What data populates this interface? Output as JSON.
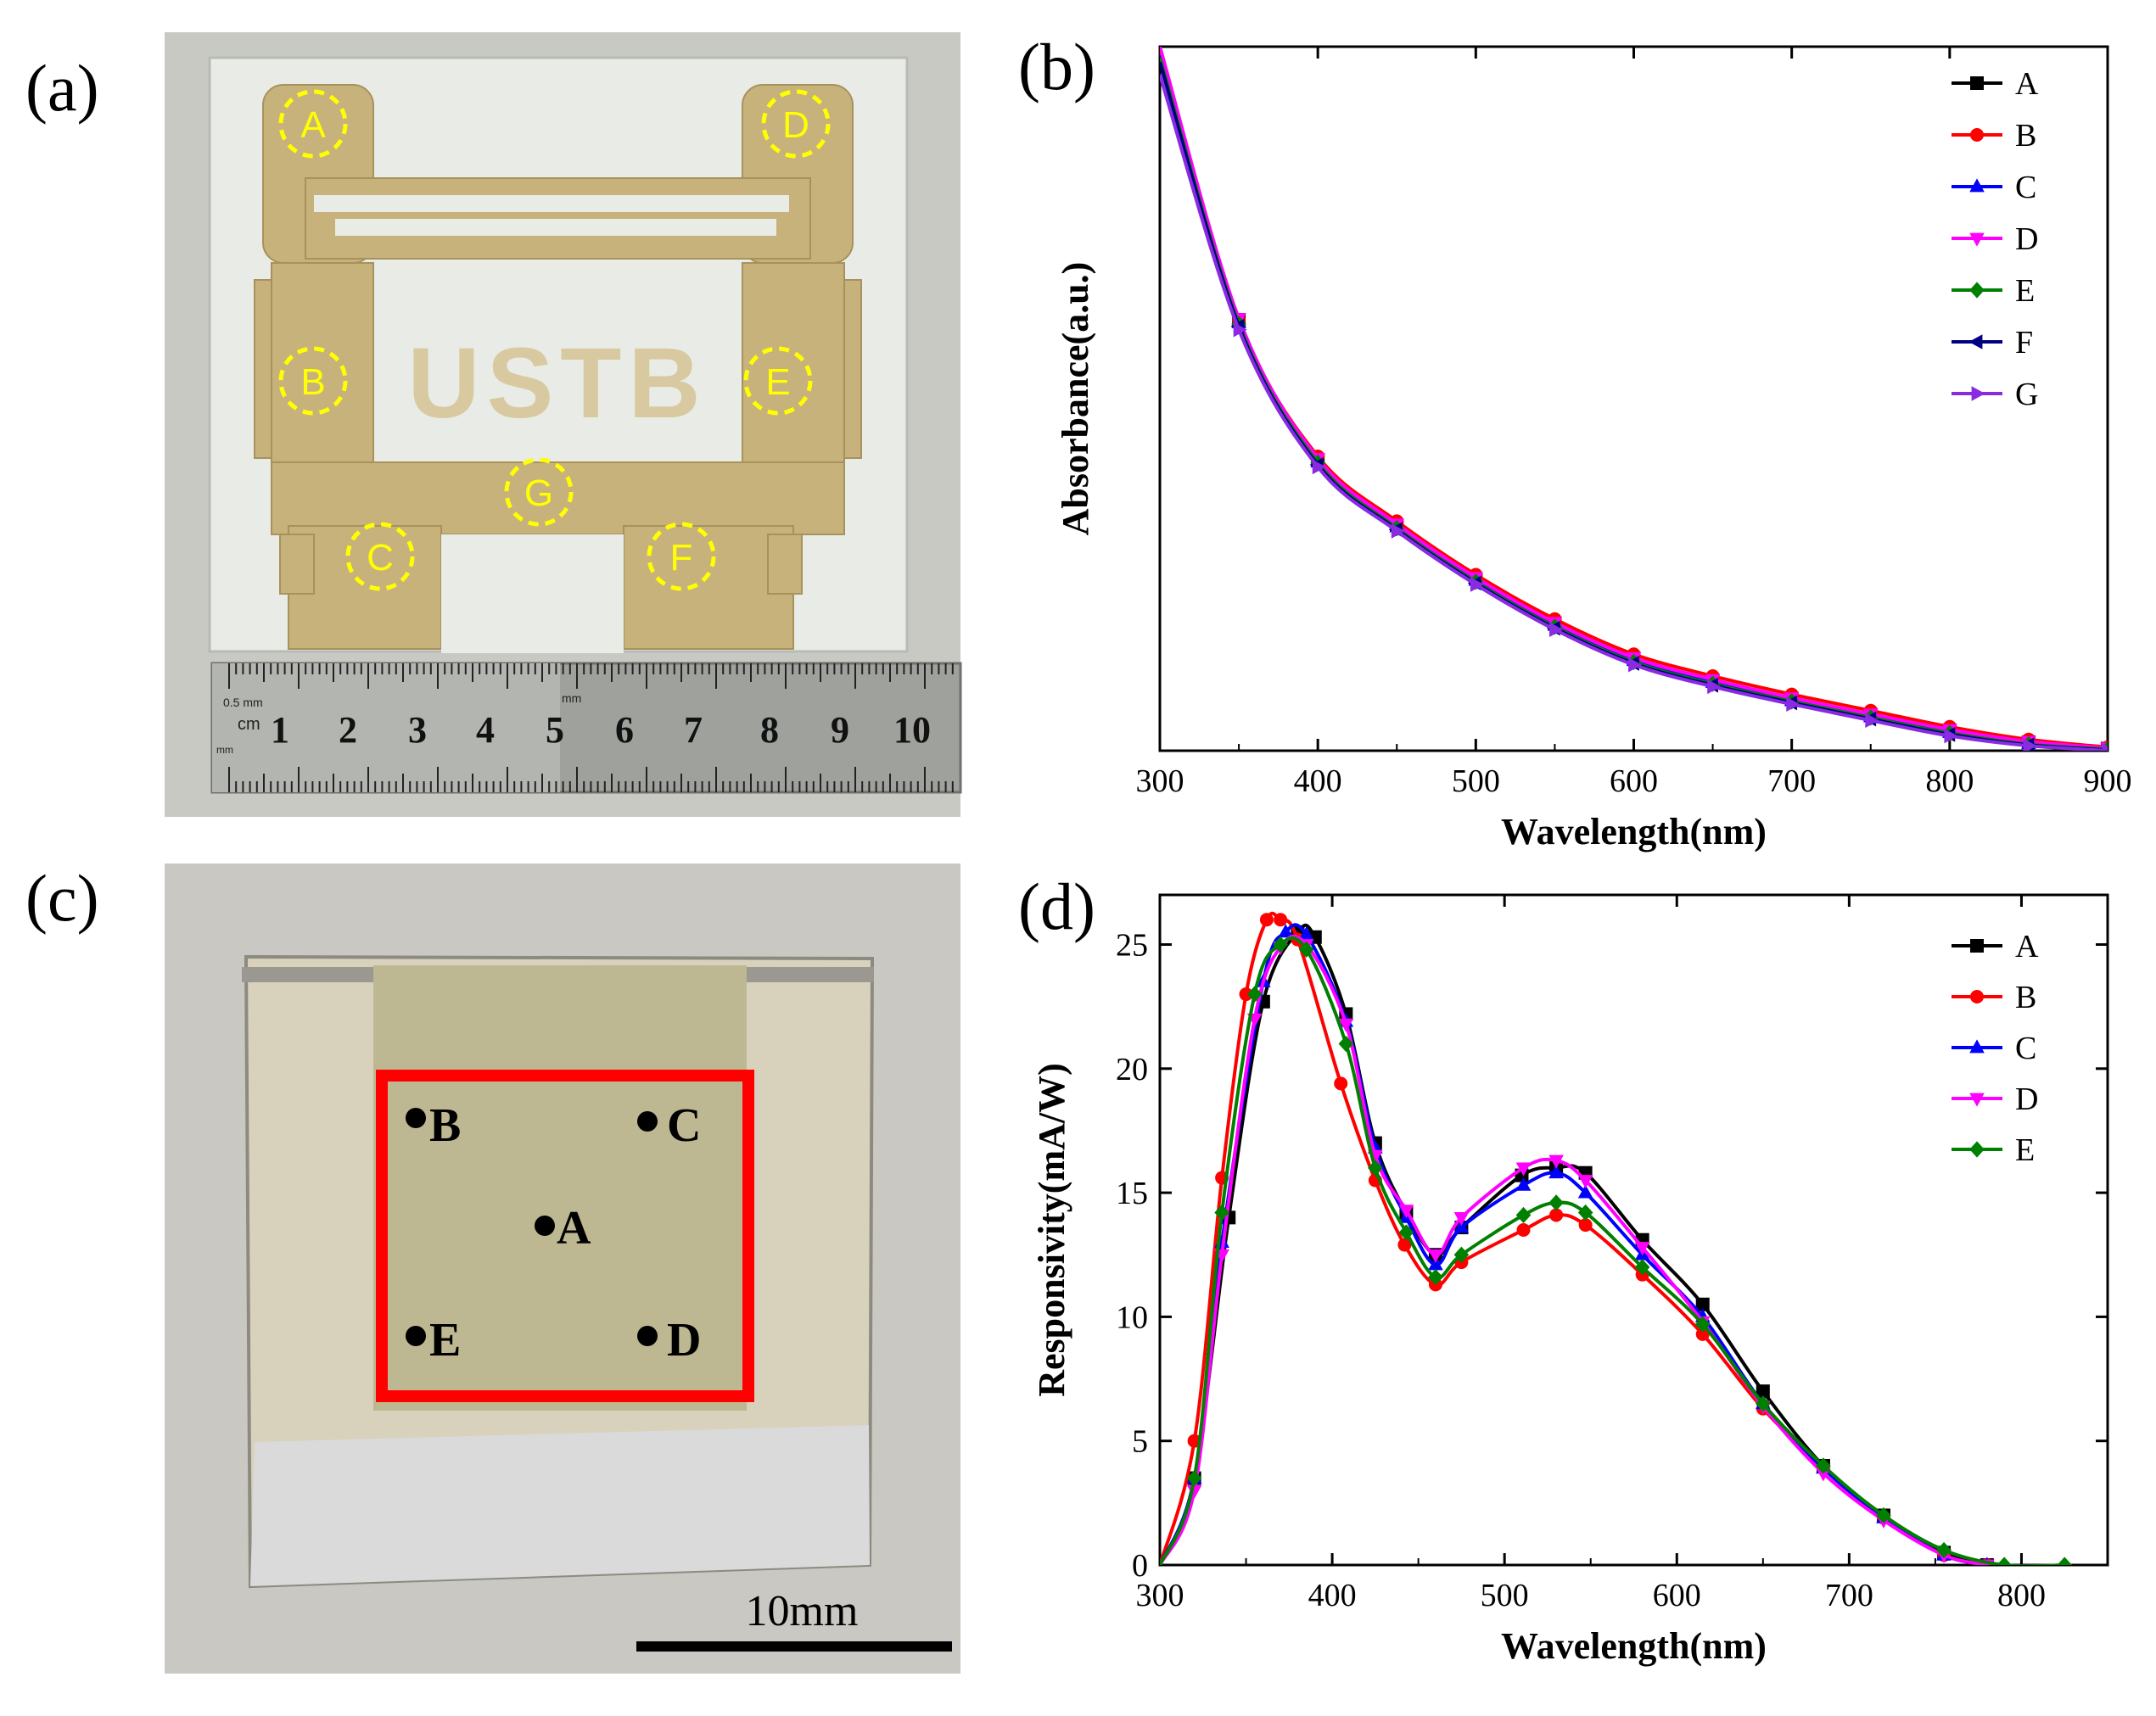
{
  "panel_labels": {
    "a": "(a)",
    "b": "(b)",
    "c": "(c)",
    "d": "(d)"
  },
  "photo_a": {
    "logo_text": "USTB",
    "points": [
      "A",
      "B",
      "C",
      "D",
      "E",
      "F",
      "G"
    ],
    "ruler_unit": "cm",
    "ruler_small_1": "0.5 mm",
    "ruler_small_2": "mm",
    "ruler_small_3": "mm",
    "ruler_numbers": [
      "1",
      "2",
      "3",
      "4",
      "5",
      "6",
      "7",
      "8",
      "9",
      "10"
    ]
  },
  "photo_c": {
    "points": [
      "A",
      "B",
      "C",
      "D",
      "E"
    ],
    "scale_label": "10mm"
  },
  "colors": {
    "A": "#000000",
    "B": "#ff0000",
    "C": "#0000ff",
    "D": "#ff00ff",
    "E": "#008000",
    "F": "#000080",
    "G": "#8a2be2",
    "highlight_circle": "#ffff00",
    "square_outline": "#ff0000"
  },
  "chart_data": [
    {
      "panel": "b",
      "type": "line",
      "title": "",
      "xlabel": "Wavelength(nm)",
      "ylabel": "Absorbance(a.u.)",
      "xlim": [
        300,
        900
      ],
      "ylim": [
        0,
        1
      ],
      "x_ticks": [
        300,
        400,
        500,
        600,
        700,
        800,
        900
      ],
      "y_ticks": [],
      "legend": "top-right",
      "x": [
        300,
        350,
        400,
        450,
        500,
        550,
        600,
        650,
        700,
        750,
        800,
        850,
        900
      ],
      "series": [
        {
          "name": "A",
          "marker": "square",
          "values": [
            0.99,
            0.61,
            0.413,
            0.32,
            0.244,
            0.181,
            0.131,
            0.1,
            0.074,
            0.051,
            0.029,
            0.012,
            0.003
          ]
        },
        {
          "name": "B",
          "marker": "circle",
          "values": [
            0.998,
            0.612,
            0.418,
            0.326,
            0.25,
            0.187,
            0.137,
            0.106,
            0.08,
            0.057,
            0.034,
            0.016,
            0.005
          ]
        },
        {
          "name": "C",
          "marker": "triangle-up",
          "values": [
            0.986,
            0.608,
            0.41,
            0.318,
            0.242,
            0.178,
            0.128,
            0.097,
            0.071,
            0.048,
            0.026,
            0.01,
            0.002
          ]
        },
        {
          "name": "D",
          "marker": "triangle-down",
          "values": [
            1.0,
            0.614,
            0.415,
            0.322,
            0.246,
            0.182,
            0.132,
            0.101,
            0.075,
            0.052,
            0.03,
            0.013,
            0.004
          ]
        },
        {
          "name": "E",
          "marker": "diamond",
          "values": [
            0.984,
            0.606,
            0.409,
            0.316,
            0.24,
            0.176,
            0.126,
            0.095,
            0.07,
            0.047,
            0.025,
            0.009,
            0.002
          ]
        },
        {
          "name": "F",
          "marker": "triangle-left",
          "values": [
            0.978,
            0.603,
            0.406,
            0.314,
            0.238,
            0.174,
            0.124,
            0.093,
            0.068,
            0.045,
            0.023,
            0.008,
            0.001
          ]
        },
        {
          "name": "G",
          "marker": "triangle-right",
          "values": [
            0.96,
            0.598,
            0.403,
            0.312,
            0.236,
            0.172,
            0.122,
            0.091,
            0.066,
            0.043,
            0.021,
            0.007,
            0.0
          ]
        }
      ]
    },
    {
      "panel": "d",
      "type": "line",
      "title": "",
      "xlabel": "Wavelength(nm)",
      "ylabel": "Responsivity(mA/W)",
      "xlim": [
        300,
        850
      ],
      "ylim": [
        0,
        27
      ],
      "x_ticks": [
        300,
        400,
        500,
        600,
        700,
        800
      ],
      "y_ticks": [
        0,
        5,
        10,
        15,
        20,
        25
      ],
      "legend": "top-right",
      "series": [
        {
          "name": "A",
          "marker": "square",
          "x": [
            300,
            320,
            340,
            360,
            380,
            390,
            408,
            425,
            443,
            460,
            475,
            510,
            530,
            547,
            580,
            615,
            650,
            685,
            720,
            755,
            780
          ],
          "values": [
            0,
            3.5,
            14.0,
            22.7,
            25.5,
            25.3,
            22.2,
            17.0,
            14.2,
            12.5,
            13.6,
            15.7,
            16.0,
            15.8,
            13.1,
            10.5,
            7.0,
            4.0,
            2.0,
            0.5,
            0
          ]
        },
        {
          "name": "B",
          "marker": "circle",
          "x": [
            300,
            320,
            336,
            350,
            362,
            370,
            380,
            405,
            425,
            442,
            460,
            475,
            511,
            530,
            547,
            580,
            615,
            650,
            685,
            720,
            755,
            780
          ],
          "values": [
            0,
            5.0,
            15.6,
            23.0,
            26.0,
            26.0,
            25.2,
            19.4,
            15.5,
            12.9,
            11.3,
            12.2,
            13.5,
            14.1,
            13.7,
            11.7,
            9.3,
            6.3,
            3.9,
            1.9,
            0.4,
            0
          ]
        },
        {
          "name": "C",
          "marker": "triangle-up",
          "x": [
            300,
            320,
            336,
            360,
            373,
            385,
            408,
            425,
            443,
            460,
            475,
            511,
            530,
            547,
            580,
            615,
            650,
            685,
            720,
            755,
            780
          ],
          "values": [
            0,
            3.5,
            13.0,
            23.5,
            25.5,
            25.4,
            21.9,
            16.8,
            14.0,
            12.1,
            13.6,
            15.3,
            15.8,
            15.0,
            12.5,
            10.0,
            6.5,
            3.9,
            1.9,
            0.4,
            0
          ]
        },
        {
          "name": "D",
          "marker": "triangle-down",
          "x": [
            300,
            320,
            336,
            355,
            370,
            385,
            408,
            425,
            443,
            460,
            475,
            511,
            530,
            547,
            580,
            615,
            650,
            685,
            720,
            755,
            780
          ],
          "values": [
            0,
            3.0,
            12.5,
            22.0,
            24.9,
            25.0,
            21.8,
            16.5,
            14.3,
            12.5,
            14.0,
            16.0,
            16.3,
            15.5,
            12.8,
            9.8,
            6.4,
            3.7,
            1.8,
            0.4,
            0
          ]
        },
        {
          "name": "E",
          "marker": "diamond",
          "x": [
            300,
            320,
            336,
            355,
            370,
            385,
            408,
            425,
            443,
            460,
            475,
            511,
            530,
            547,
            580,
            615,
            650,
            685,
            720,
            755,
            790,
            825
          ],
          "values": [
            0,
            3.5,
            14.2,
            23.0,
            25.0,
            24.8,
            21.0,
            16.0,
            13.4,
            11.6,
            12.5,
            14.1,
            14.6,
            14.2,
            12.0,
            9.7,
            6.5,
            4.0,
            2.0,
            0.6,
            0,
            0
          ]
        }
      ]
    }
  ]
}
